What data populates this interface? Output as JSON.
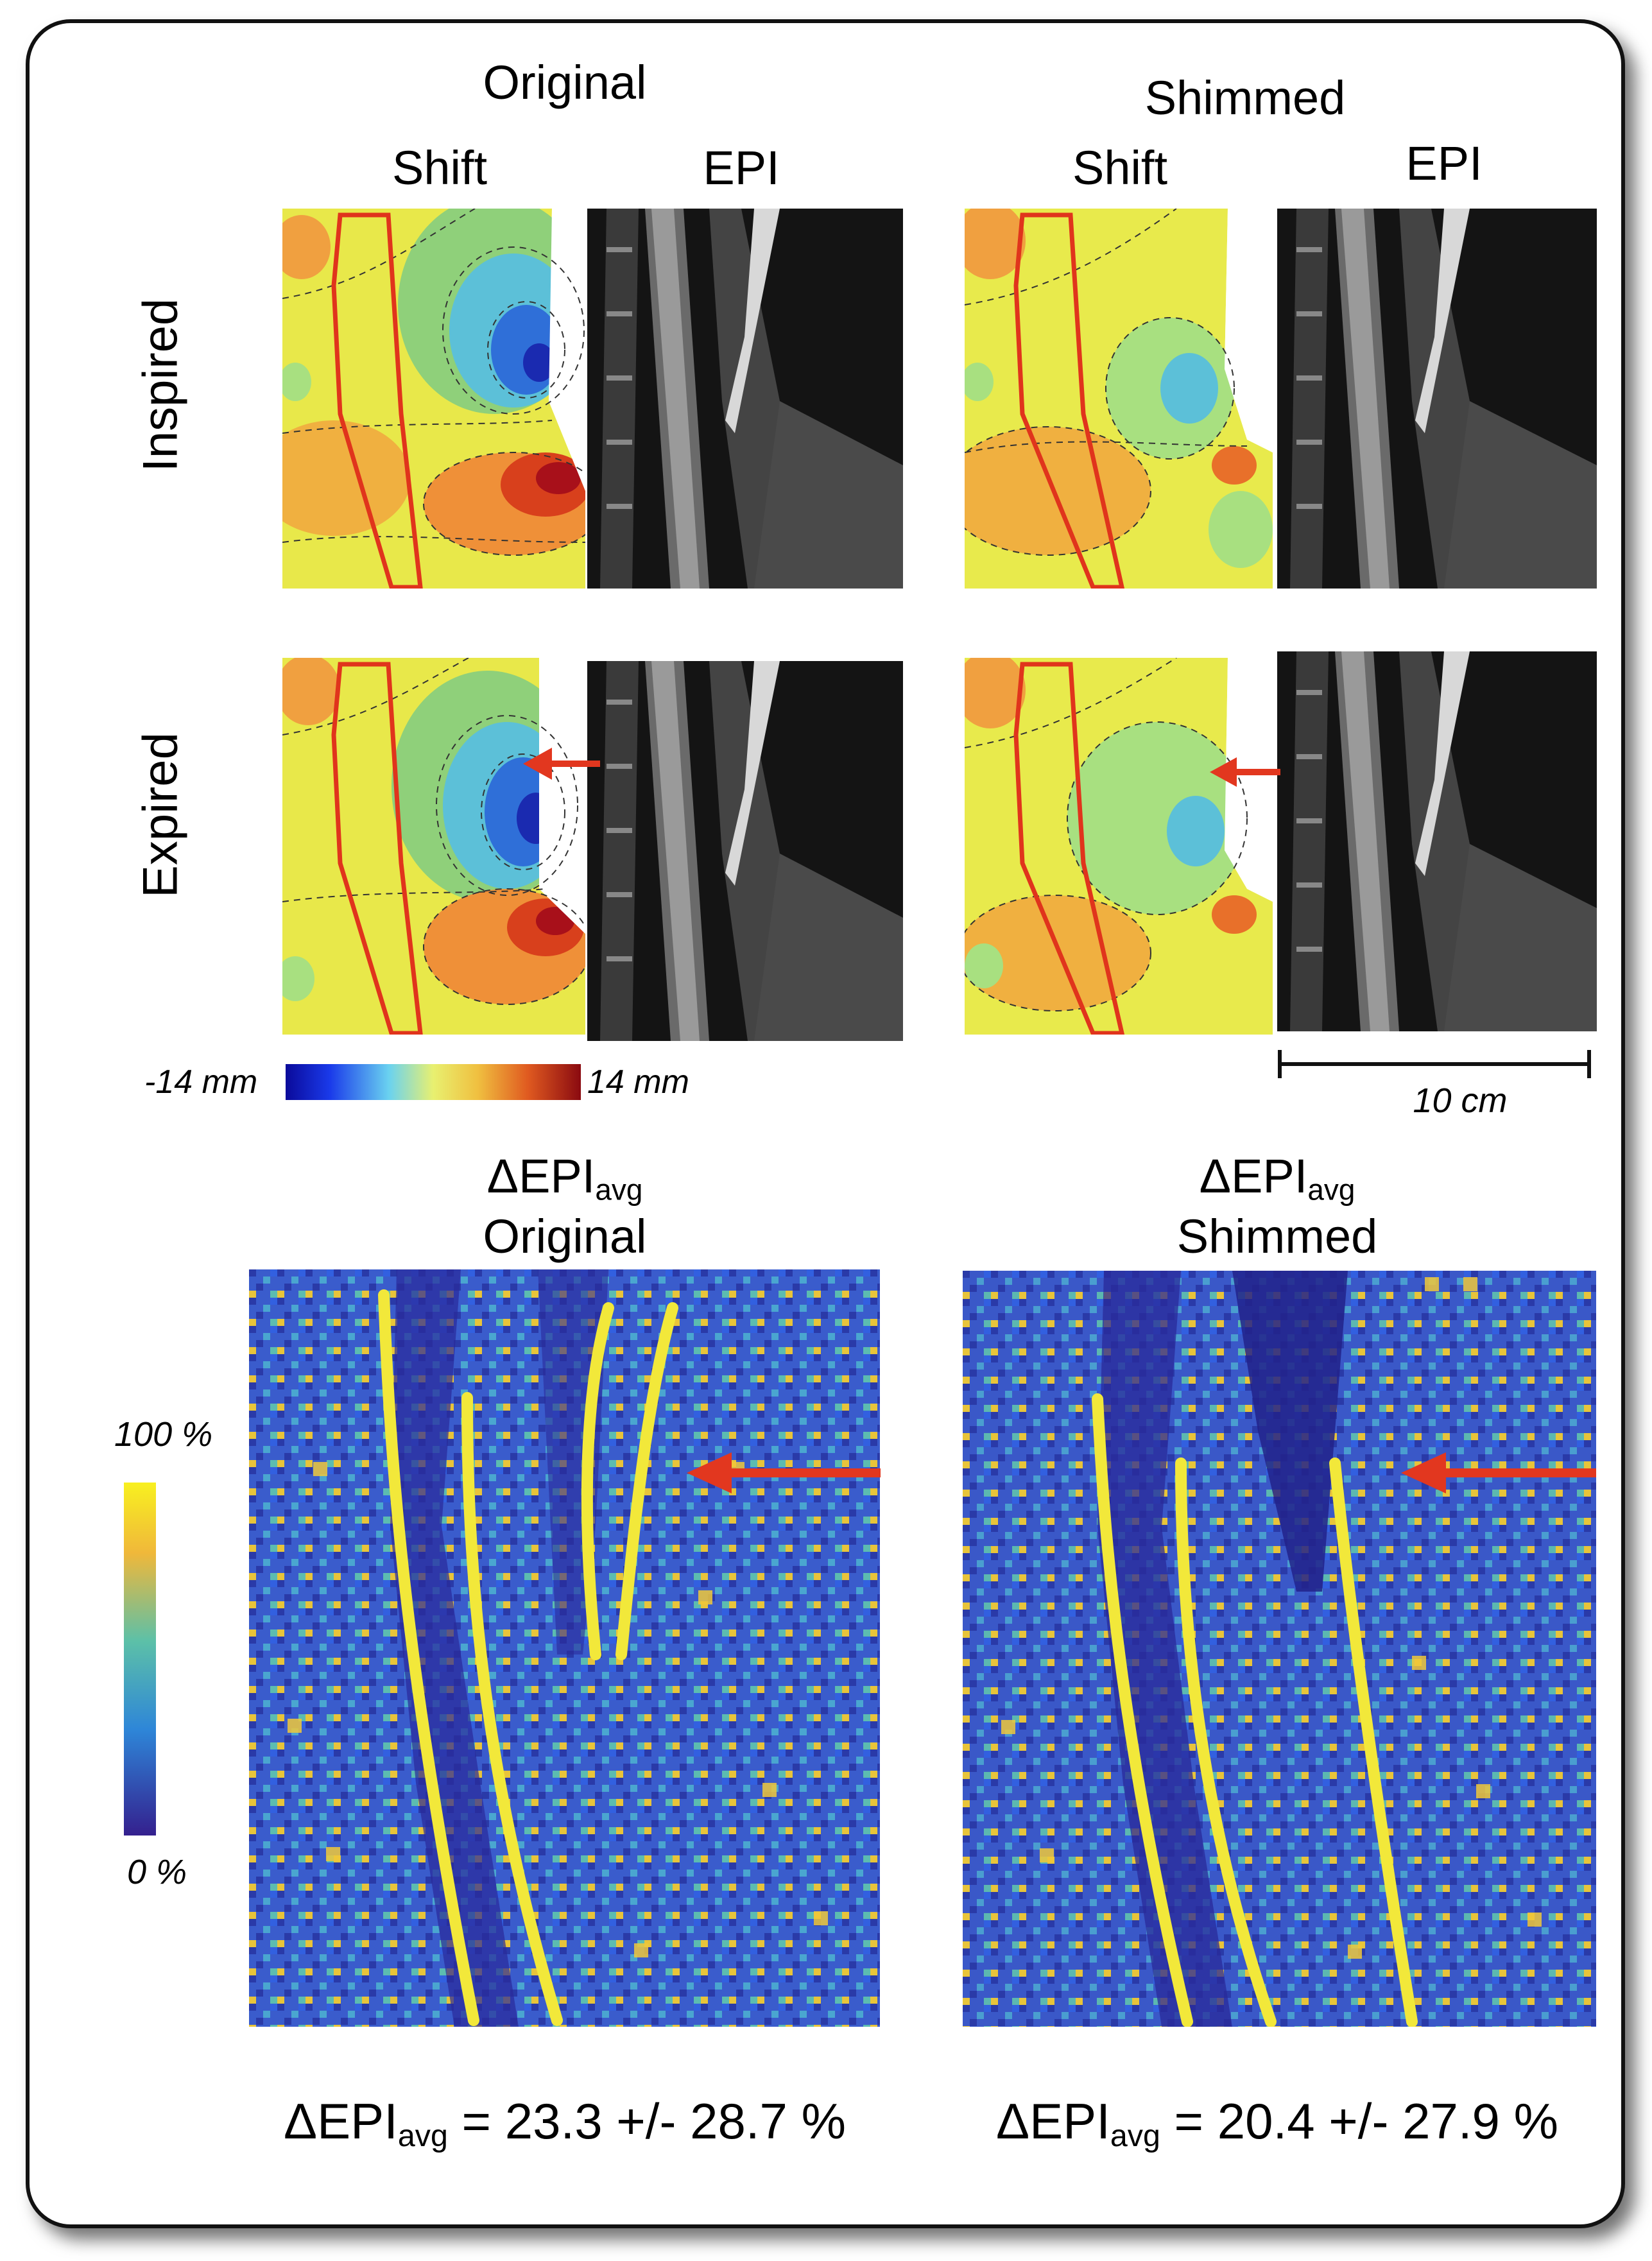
{
  "columns": {
    "original": "Original",
    "shimmed": "Shimmed",
    "shift": "Shift",
    "epi": "EPI"
  },
  "rows": {
    "inspired": "Inspired",
    "expired": "Expired"
  },
  "colorbar_shift": {
    "min_label": "-14 mm",
    "max_label": "14 mm"
  },
  "scale_bar": {
    "label": "10 cm"
  },
  "delta_maps": {
    "symbol": "ΔEPI",
    "subscript": "avg",
    "original_label": "Original",
    "shimmed_label": "Shimmed"
  },
  "colorbar_percent": {
    "max_label": "100 %",
    "min_label": "0 %"
  },
  "stats": {
    "original": {
      "symbol": "ΔEPI",
      "subscript": "avg",
      "value": "= 23.3 +/- 28.7 %"
    },
    "shimmed": {
      "symbol": "ΔEPI",
      "subscript": "avg",
      "value": "= 20.4 +/- 27.9 %"
    }
  },
  "colors": {
    "arrow": "#e2371f",
    "roi": "#e0341c"
  }
}
